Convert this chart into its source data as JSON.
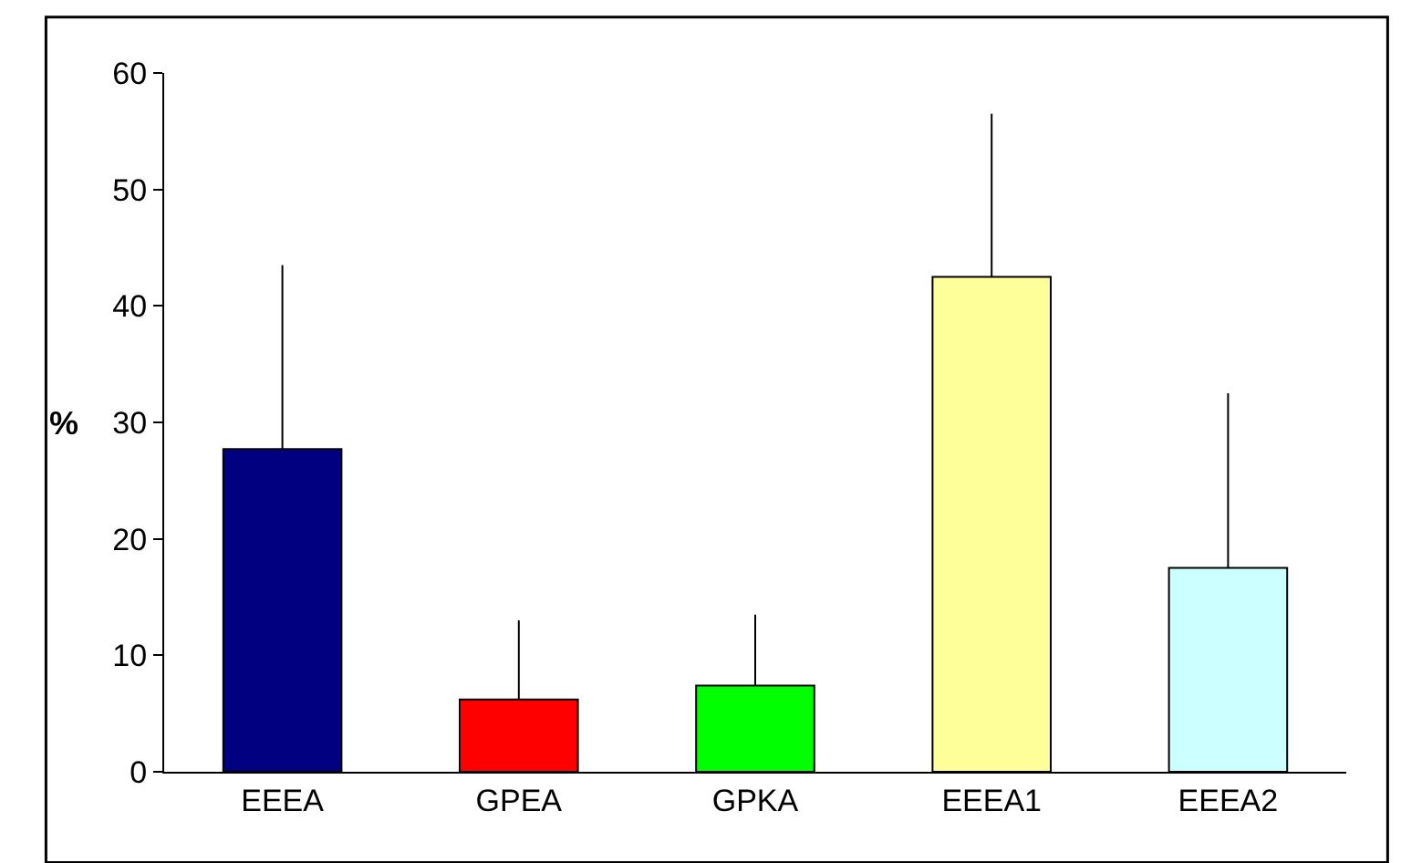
{
  "chart_data": {
    "type": "bar",
    "ylabel": "%",
    "categories": [
      "EEEA",
      "GPEA",
      "GPKA",
      "EEEA1",
      "EEEA2"
    ],
    "values": [
      27.7,
      6.2,
      7.4,
      42.5,
      17.5
    ],
    "colors": [
      "#000080",
      "#ff0000",
      "#00ff00",
      "#ffff99",
      "#ccffff"
    ],
    "errors": [
      [
        27.7,
        43.5
      ],
      [
        6.2,
        13
      ],
      [
        7.4,
        13.5
      ],
      [
        42.5,
        56.5
      ],
      [
        17.5,
        32.5
      ]
    ],
    "ylim": [
      0,
      60
    ],
    "yticks": [
      0,
      10,
      20,
      30,
      40,
      50,
      60
    ]
  }
}
